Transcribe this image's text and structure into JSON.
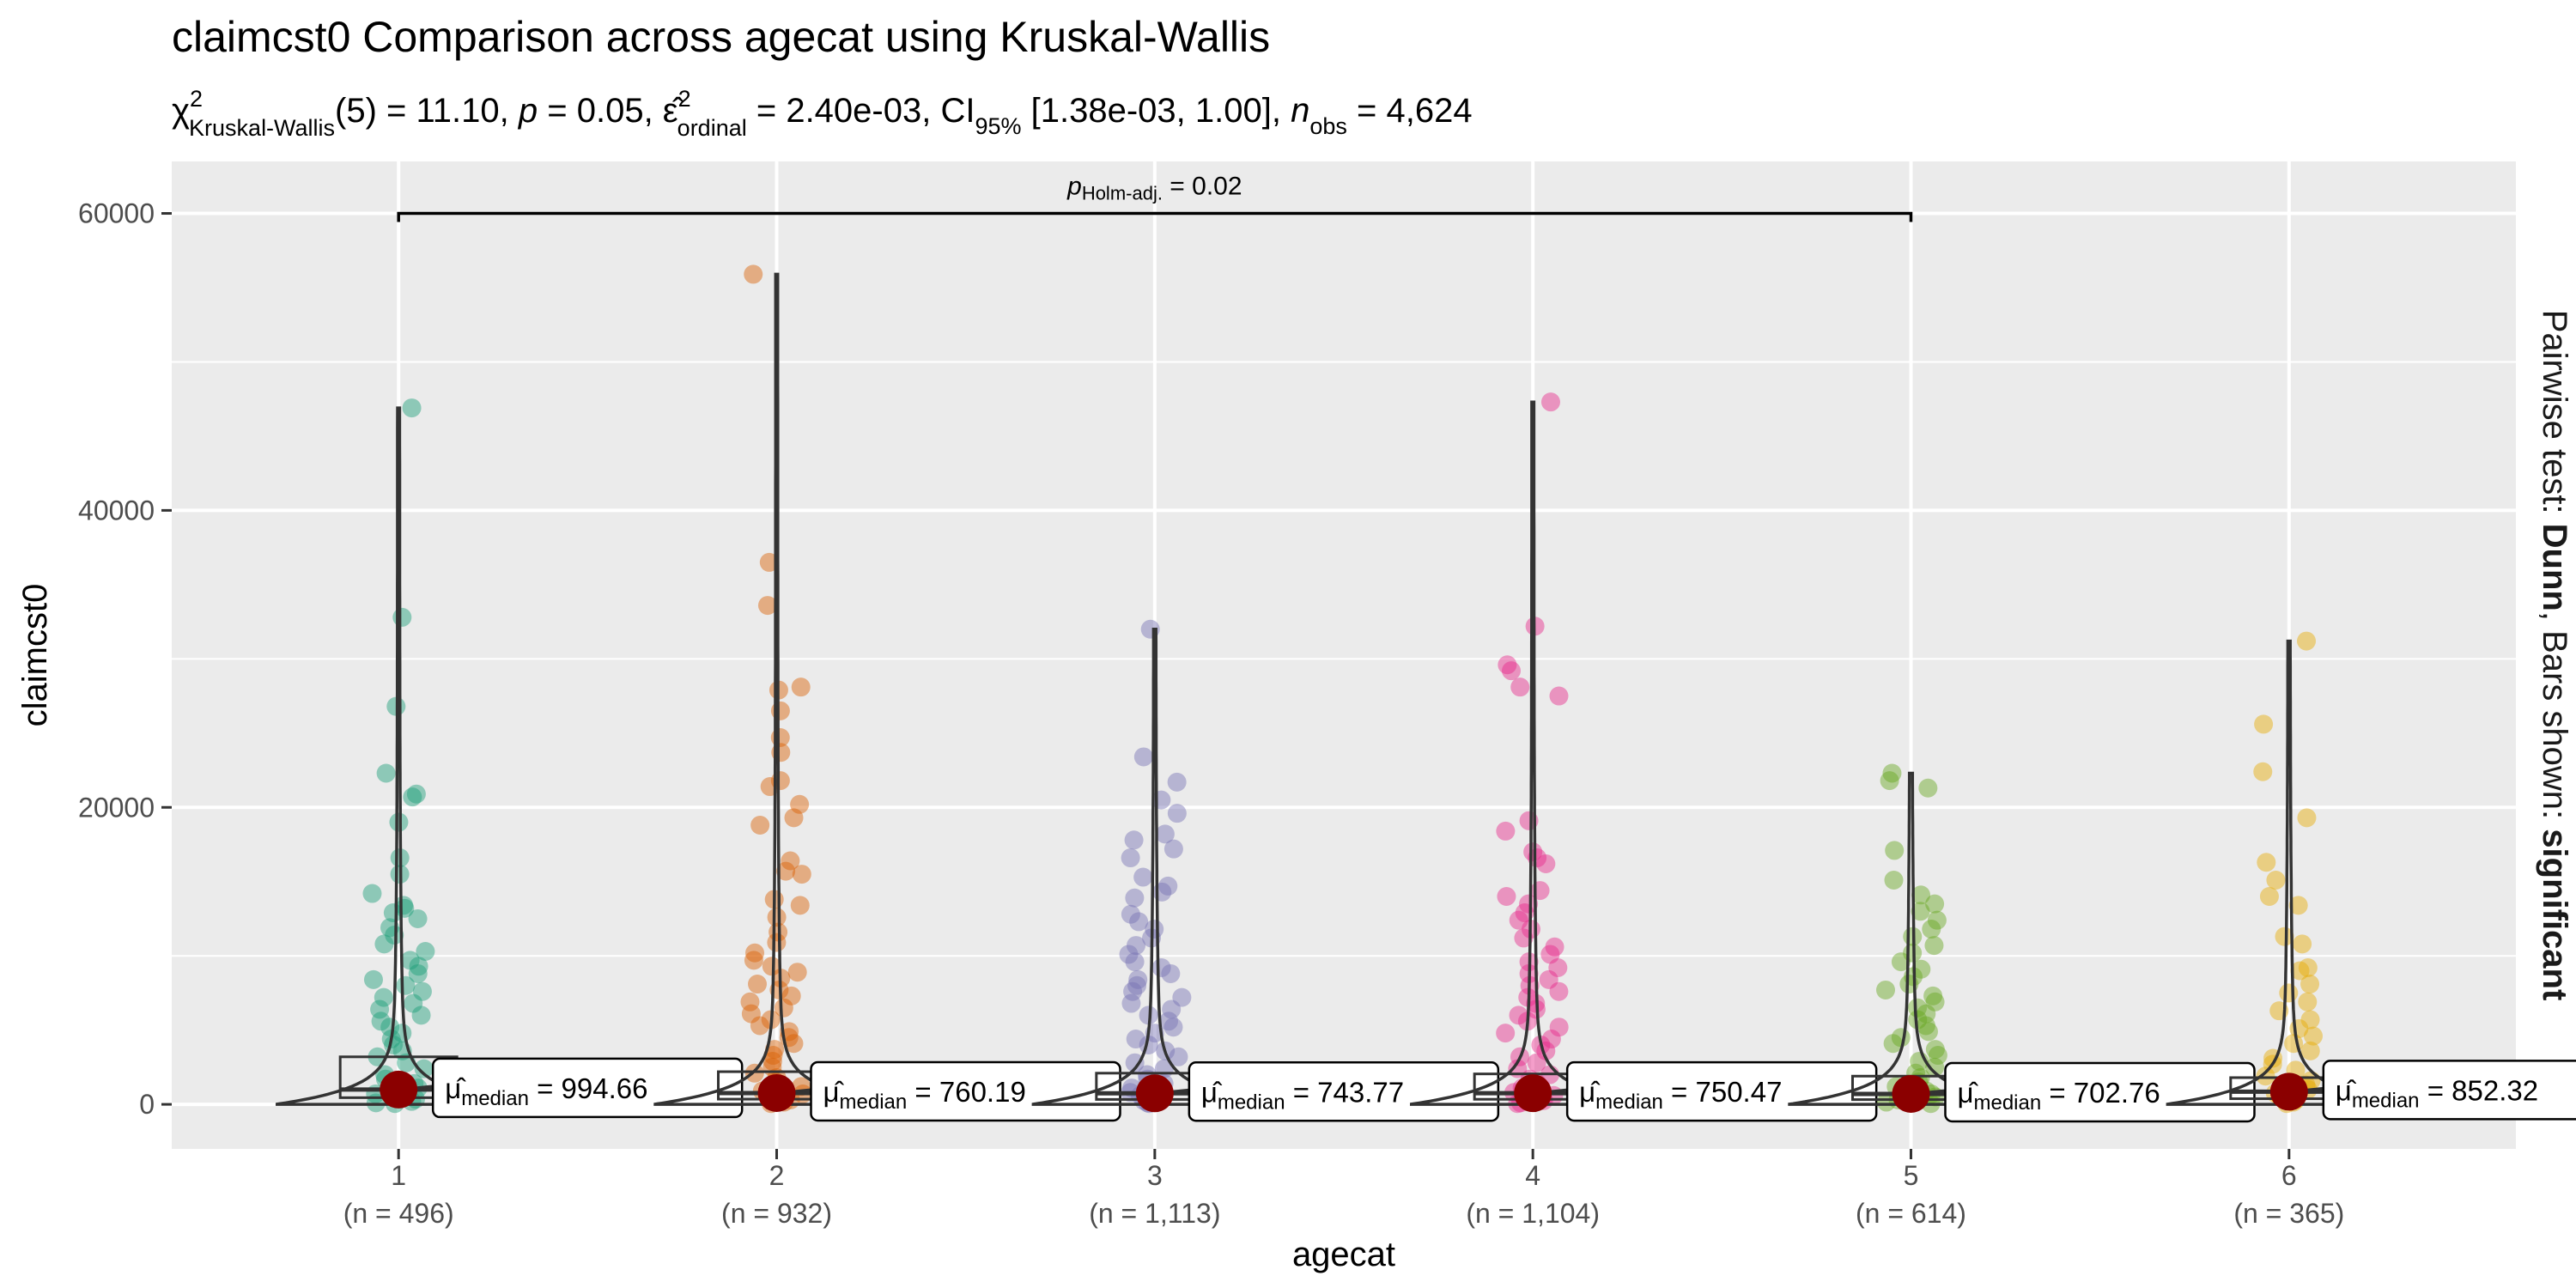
{
  "chart_data": {
    "type": "violin-box-scatter",
    "title": "claimcst0 Comparison across agecat using Kruskal-Wallis",
    "subtitle": {
      "chi_symbol": "χ",
      "chi_sup": "2",
      "chi_sub": "Kruskal-Wallis",
      "stat_part": "(5) = 11.10, ",
      "p_symbol": "p",
      "p_part": " = 0.05, ",
      "eps_symbol": "ε̂",
      "eps_sup": "2",
      "eps_sub": "ordinal",
      "eps_part": " = 2.40e-03, CI",
      "ci_sub": "95%",
      "ci_part": " [1.38e-03, 1.00], ",
      "n_symbol": "n",
      "n_sub": "obs",
      "n_part": " = 4,624"
    },
    "xlabel": "agecat",
    "ylabel": "claimcst0",
    "ylim": [
      -3000,
      63500
    ],
    "yticks": [
      0,
      20000,
      40000,
      60000
    ],
    "ytick_labels": [
      "0",
      "20000",
      "40000",
      "60000"
    ],
    "strip_text": {
      "prefix": "Pairwise test: ",
      "test": "Dunn",
      "middle": ", Bars shown: ",
      "shown": "significant"
    },
    "bracket": {
      "from_group": "1",
      "to_group": "5",
      "y": 60000,
      "label_symbol": "p",
      "label_sub": "Holm-adj.",
      "label_value": " = 0.02"
    },
    "groups": [
      {
        "category": "1",
        "n_label": "(n = 496)",
        "color": "#1B9E77",
        "median": 994.66,
        "median_label": "994.66",
        "box": {
          "q1": 450,
          "median": 994.66,
          "q3": 3200
        },
        "max": 46900,
        "points": [
          46900,
          32800,
          26800,
          22300,
          20900,
          20700,
          19000,
          16600,
          15500,
          14200,
          13400,
          13200,
          12900,
          12500,
          11900,
          11400,
          10800,
          10300,
          9700,
          9300,
          8800,
          8400,
          8000,
          7600,
          7200,
          6800,
          6400,
          6000,
          5600,
          5200,
          4800,
          4400,
          4000,
          3600,
          3200,
          2800,
          2400,
          2000,
          1700,
          1400,
          1100,
          900,
          700,
          500,
          350,
          200,
          100,
          50
        ]
      },
      {
        "category": "2",
        "n_label": "(n = 932)",
        "color": "#D95F02",
        "median": 760.19,
        "median_label": "760.19",
        "box": {
          "q1": 350,
          "median": 760.19,
          "q3": 2200
        },
        "max": 55900,
        "points": [
          55900,
          36500,
          33600,
          28100,
          27900,
          26500,
          24700,
          23700,
          21800,
          21400,
          20200,
          19300,
          18800,
          16400,
          15700,
          15500,
          13800,
          13400,
          12600,
          11600,
          10900,
          10200,
          9700,
          9300,
          8900,
          8500,
          8100,
          7700,
          7300,
          6900,
          6500,
          6100,
          5700,
          5300,
          4900,
          4500,
          4100,
          3700,
          3300,
          2900,
          2500,
          2100,
          1800,
          1500,
          1200,
          900,
          700,
          500,
          300,
          150,
          50
        ]
      },
      {
        "category": "3",
        "n_label": "(n = 1,113)",
        "color": "#7570B3",
        "median": 743.77,
        "median_label": "743.77",
        "box": {
          "q1": 330,
          "median": 743.77,
          "q3": 2100
        },
        "max": 32000,
        "points": [
          32000,
          23400,
          21700,
          20500,
          19600,
          18200,
          17800,
          17200,
          16600,
          15300,
          14700,
          14300,
          13900,
          12800,
          12300,
          11800,
          11200,
          10700,
          10100,
          9600,
          9200,
          8800,
          8400,
          8000,
          7600,
          7200,
          6800,
          6400,
          6000,
          5600,
          5200,
          4800,
          4400,
          4000,
          3600,
          3200,
          2800,
          2400,
          2000,
          1700,
          1400,
          1100,
          800,
          600,
          400,
          250,
          100,
          50
        ]
      },
      {
        "category": "4",
        "n_label": "(n = 1,104)",
        "color": "#E7298A",
        "median": 750.47,
        "median_label": "750.47",
        "box": {
          "q1": 340,
          "median": 750.47,
          "q3": 2050
        },
        "max": 47300,
        "points": [
          47300,
          32200,
          29600,
          29200,
          28100,
          27500,
          19100,
          18400,
          17000,
          16600,
          16200,
          14400,
          14000,
          13500,
          12900,
          12400,
          11800,
          11200,
          10600,
          10100,
          9600,
          9200,
          8800,
          8400,
          8000,
          7600,
          7200,
          6800,
          6400,
          6000,
          5600,
          5200,
          4800,
          4400,
          4000,
          3600,
          3200,
          2800,
          2400,
          2000,
          1700,
          1400,
          1100,
          800,
          600,
          400,
          250,
          100,
          50
        ]
      },
      {
        "category": "5",
        "n_label": "(n = 614)",
        "color": "#66A61E",
        "median": 702.76,
        "median_label": "702.76",
        "box": {
          "q1": 320,
          "median": 702.76,
          "q3": 1900
        },
        "max": 22300,
        "points": [
          22300,
          21800,
          21300,
          17100,
          15100,
          14100,
          13500,
          13000,
          12400,
          11800,
          11300,
          10700,
          10200,
          9600,
          9100,
          8600,
          8100,
          7700,
          7300,
          6900,
          6500,
          6100,
          5700,
          5300,
          4900,
          4500,
          4100,
          3700,
          3300,
          2900,
          2500,
          2100,
          1800,
          1500,
          1200,
          900,
          700,
          500,
          300,
          150,
          50
        ]
      },
      {
        "category": "6",
        "n_label": "(n = 365)",
        "color": "#E6AB02",
        "median": 852.32,
        "median_label": "852.32",
        "box": {
          "q1": 380,
          "median": 852.32,
          "q3": 1800
        },
        "max": 31200,
        "points": [
          31200,
          25600,
          22400,
          19300,
          16300,
          15100,
          14000,
          13400,
          11300,
          10800,
          9200,
          9000,
          8100,
          7500,
          6900,
          6300,
          5700,
          5100,
          4600,
          4100,
          3600,
          3100,
          2700,
          2300,
          1900,
          1600,
          1300,
          1000,
          750,
          500,
          300,
          150,
          50
        ]
      }
    ]
  }
}
